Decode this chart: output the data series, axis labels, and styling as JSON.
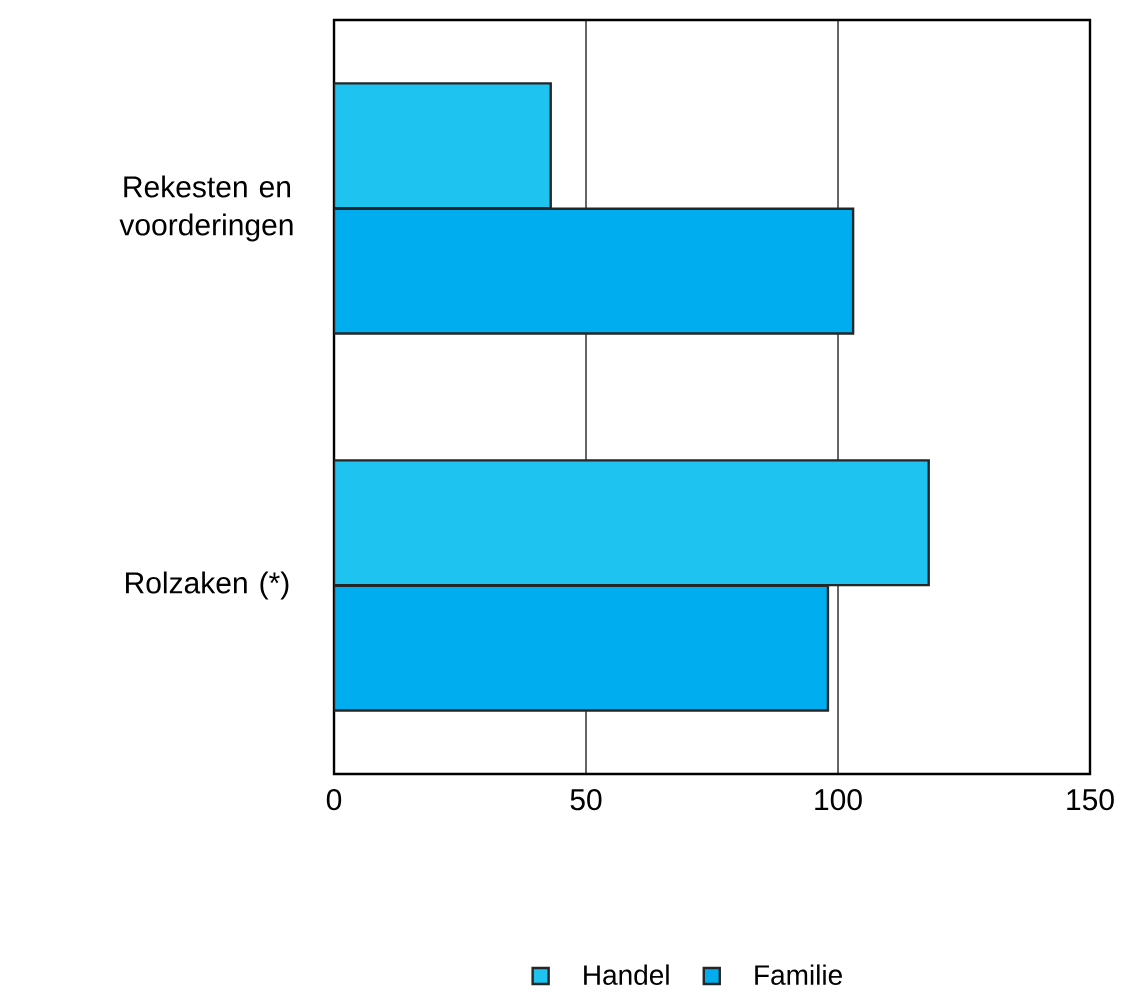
{
  "chart_data": {
    "type": "bar",
    "orientation": "horizontal",
    "categories": [
      "Rekesten en voorderingen",
      "Rolzaken (*)"
    ],
    "series": [
      {
        "name": "Handel",
        "color": "#1ec3f0",
        "values": [
          43,
          118
        ]
      },
      {
        "name": "Familie",
        "color": "#00aeef",
        "values": [
          103,
          98
        ]
      }
    ],
    "xlim": [
      0,
      150
    ],
    "xticks": [
      0,
      50,
      100,
      150
    ],
    "grid": "x",
    "legend": "bottom"
  }
}
